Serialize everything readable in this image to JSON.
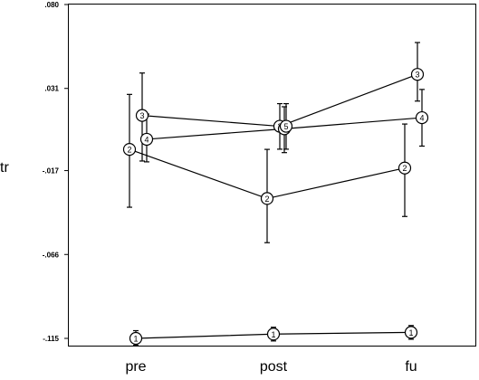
{
  "chart_data": {
    "type": "line",
    "title": "",
    "xlabel": "",
    "ylabel": "tr",
    "categories": [
      "pre",
      "post",
      "fu"
    ],
    "ylim": [
      -0.115,
      0.08
    ],
    "yticks": [
      {
        "value": 0.08,
        "label": ".080"
      },
      {
        "value": 0.031,
        "label": ".031"
      },
      {
        "value": -0.017,
        "label": "-.017"
      },
      {
        "value": -0.066,
        "label": "-.066"
      },
      {
        "value": -0.115,
        "label": "-.115"
      }
    ],
    "grid": false,
    "legend": "none",
    "series": [
      {
        "marker": "1",
        "values": [
          -0.115,
          -0.1125,
          -0.1115
        ],
        "err_low": [
          -0.119,
          -0.1165,
          -0.1155
        ],
        "err_high": [
          -0.1105,
          -0.1085,
          -0.1075
        ]
      },
      {
        "marker": "2",
        "values": [
          -0.0046,
          -0.0333,
          -0.0155
        ],
        "err_low": [
          -0.0384,
          -0.0591,
          -0.0438
        ],
        "err_high": [
          0.0275,
          -0.0046,
          0.0102
        ]
      },
      {
        "marker": "3",
        "values": [
          0.0152,
          0.0089,
          0.0392
        ],
        "err_low": [
          -0.0114,
          -0.0045,
          0.0236
        ],
        "err_high": [
          0.04,
          0.0221,
          0.0578
        ]
      },
      {
        "marker": "4",
        "values": [
          0.0013,
          0.0074,
          0.0139
        ],
        "err_low": [
          -0.0119,
          -0.0065,
          -0.0027
        ],
        "err_high": [
          0.016,
          0.0203,
          0.0304
        ]
      },
      {
        "marker": "5",
        "values": [
          null,
          0.0089,
          null
        ],
        "err_low": [
          null,
          -0.0045,
          null
        ],
        "err_high": [
          null,
          0.0221,
          null
        ]
      }
    ]
  }
}
